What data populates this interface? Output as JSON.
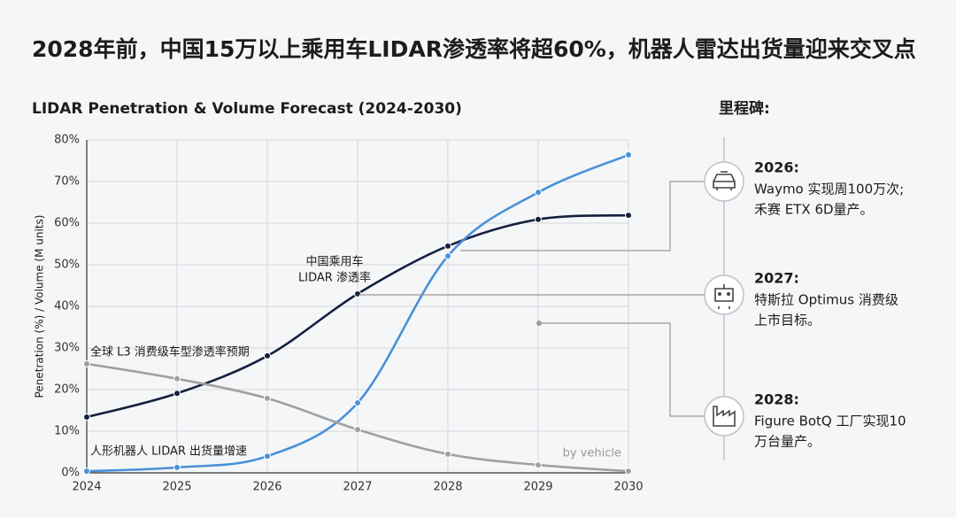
{
  "header": {
    "title": "2028年前，中国15万以上乘用车LIDAR渗透率将超60%，机器人雷达出货量迎来交叉点"
  },
  "chart_data": {
    "type": "line",
    "title": "LIDAR Penetration & Volume Forecast (2024-2030)",
    "y_label": "Penetration (%) / Volume (M units)",
    "categories": [
      "2024",
      "2025",
      "2026",
      "2027",
      "2028",
      "2029",
      "2030"
    ],
    "ylim": [
      0,
      80
    ],
    "yticks": [
      {
        "value": 0,
        "label": "0%"
      },
      {
        "value": 10,
        "label": "10%"
      },
      {
        "value": 20,
        "label": "20%"
      },
      {
        "value": 30,
        "label": "30%"
      },
      {
        "value": 40,
        "label": "40%"
      },
      {
        "value": 50,
        "label": "50%"
      },
      {
        "value": 60,
        "label": "60%"
      },
      {
        "value": 70,
        "label": "70%"
      },
      {
        "value": 80,
        "label": "80%"
      }
    ],
    "grid": true,
    "series": [
      {
        "color": "#14213d",
        "values": [
          13.4,
          19.1,
          28.1,
          43,
          54.5,
          60.9,
          61.9
        ]
      },
      {
        "color": "#4a90d9",
        "values": [
          0.4,
          1.3,
          4,
          16.8,
          52.1,
          67.4,
          76.4
        ]
      },
      {
        "color": "#a0a0a0",
        "values": [
          26.2,
          22.6,
          17.9,
          10.4,
          4.5,
          1.9,
          0.4
        ]
      }
    ],
    "annotations": [
      {
        "lines": [
          "中国乘用车",
          "LIDAR 渗透率"
        ]
      },
      {
        "lines": [
          "全球 L3 消费级车型渗透率预期"
        ]
      },
      {
        "lines": [
          "人形机器人 LIDAR 出货量增速"
        ]
      },
      {
        "lines": [
          "by vehicle"
        ]
      }
    ]
  },
  "milestones": {
    "title": "里程碑:",
    "items": [
      {
        "year": "2026:",
        "lines": [
          "Waymo 实现周100万次;",
          "禾赛 ETX 6D量产。"
        ]
      },
      {
        "year": "2027:",
        "lines": [
          "特斯拉 Optimus 消费级",
          "上市目标。"
        ]
      },
      {
        "year": "2028:",
        "lines": [
          "Figure BotQ 工厂实现10",
          "万台量产。"
        ]
      }
    ]
  }
}
